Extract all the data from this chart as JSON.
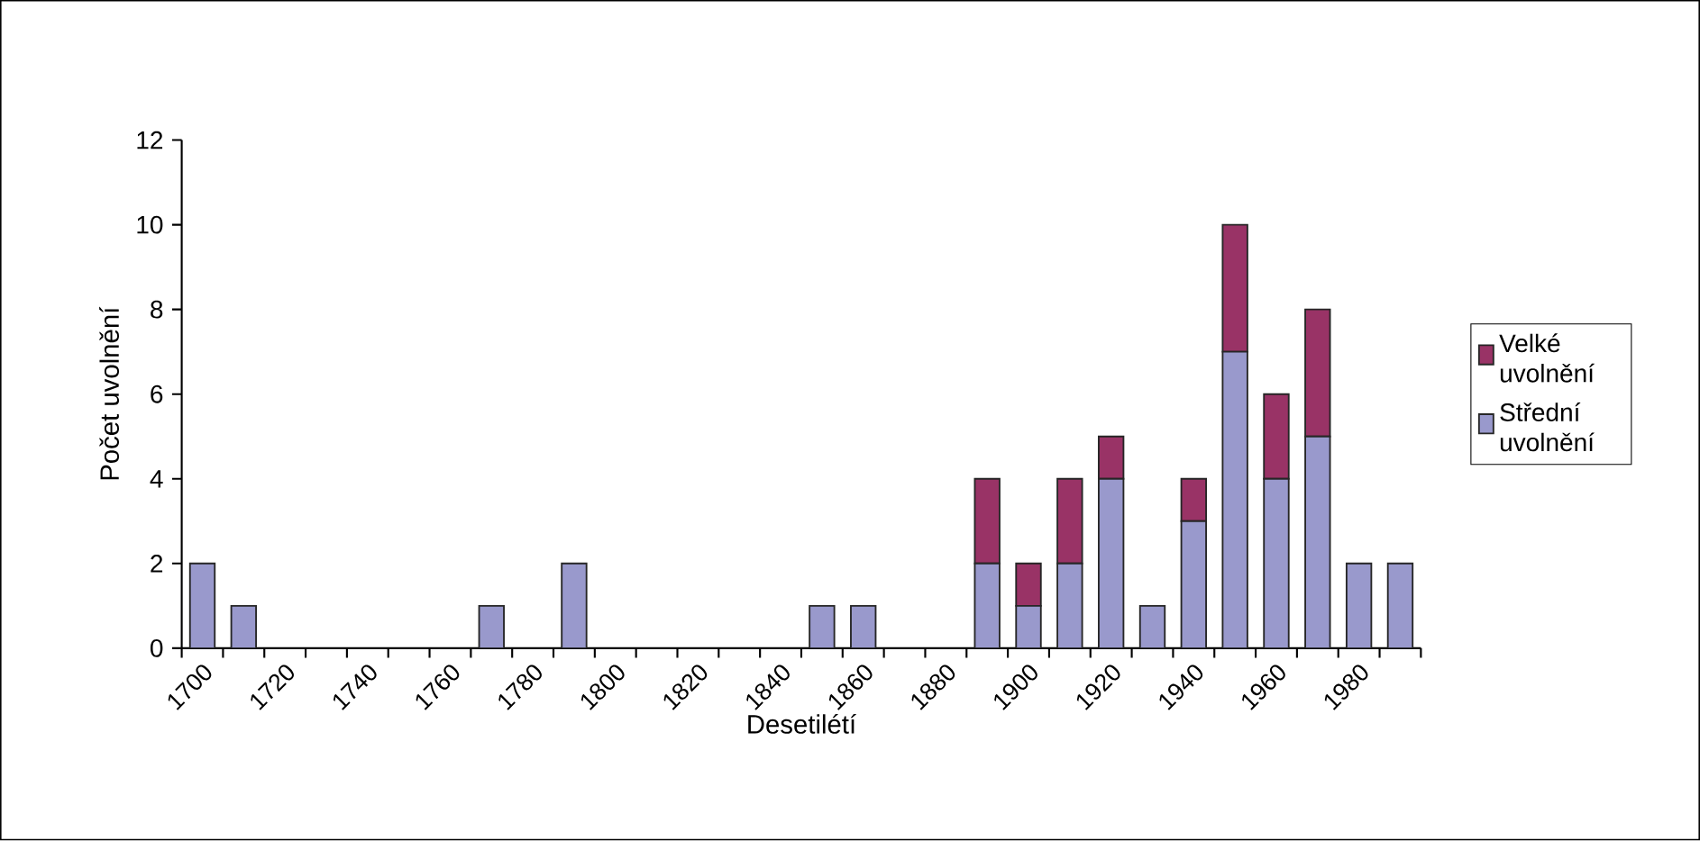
{
  "chart_data": {
    "type": "bar",
    "stacked": true,
    "xlabel": "Desetilétí",
    "ylabel": "Počet uvolnění",
    "categories": [
      "1700",
      null,
      "1720",
      null,
      "1740",
      null,
      "1760",
      null,
      "1780",
      null,
      "1800",
      null,
      "1820",
      null,
      "1840",
      null,
      "1860",
      null,
      "1880",
      null,
      "1900",
      null,
      "1920",
      null,
      "1940",
      null,
      "1960",
      null,
      "1980",
      null
    ],
    "series": [
      {
        "name": "Střední uvolnění",
        "color": "#9999cc",
        "values": [
          2,
          1,
          null,
          null,
          null,
          null,
          null,
          1,
          null,
          2,
          null,
          null,
          null,
          null,
          null,
          1,
          1,
          null,
          null,
          2,
          1,
          2,
          4,
          1,
          3,
          7,
          4,
          5,
          2,
          2
        ]
      },
      {
        "name": "Velké uvolnění",
        "color": "#993366",
        "values": [
          null,
          null,
          null,
          null,
          null,
          null,
          null,
          null,
          null,
          null,
          null,
          null,
          null,
          null,
          null,
          null,
          null,
          null,
          null,
          2,
          1,
          2,
          1,
          null,
          1,
          3,
          2,
          3,
          null,
          null
        ]
      }
    ],
    "ylim": [
      0,
      12
    ],
    "yticks": [
      0,
      2,
      4,
      6,
      8,
      10,
      12
    ],
    "grid": false,
    "legend": "right"
  }
}
